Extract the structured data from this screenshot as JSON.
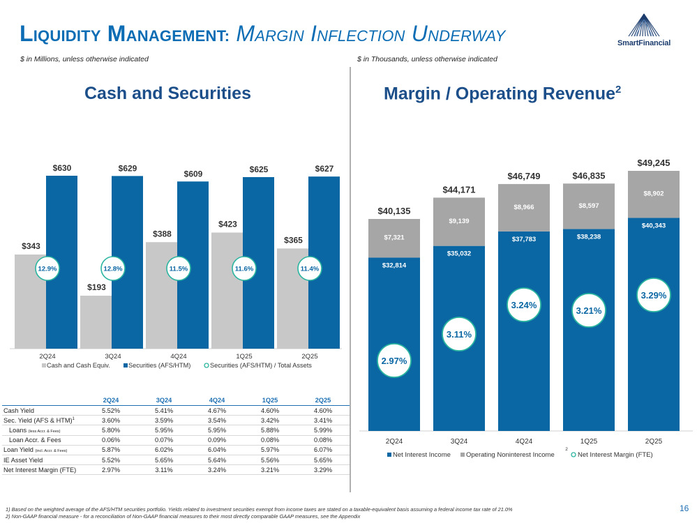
{
  "header": {
    "title_lead_cap": "L",
    "title_lead_rest": "IQUIDITY",
    "title_m_cap": "M",
    "title_m_rest": "ANAGEMENT:",
    "title_sub_cap1": "M",
    "title_sub_rest1": "ARGIN",
    "title_sub_cap2": "I",
    "title_sub_rest2": "NFLECTION",
    "title_sub_cap3": "U",
    "title_sub_rest3": "NDERWAY",
    "logo_text": "SmartFinancial",
    "left_units": "$ in Millions, unless otherwise indicated",
    "right_units": "$ in Thousands, unless otherwise indicated",
    "left_panel_title": "Cash and Securities",
    "right_panel_title": "Margin / Operating Revenue",
    "right_panel_title_sup": "2"
  },
  "chart_data": [
    {
      "type": "bar",
      "categories": [
        "2Q24",
        "3Q24",
        "4Q24",
        "1Q25",
        "2Q25"
      ],
      "series": [
        {
          "name": "Cash and Cash Equiv.",
          "values": [
            343,
            193,
            388,
            423,
            365
          ],
          "labels": [
            "$343",
            "$193",
            "$388",
            "$423",
            "$365"
          ],
          "color": "#c8c8c8"
        },
        {
          "name": "Securities (AFS/HTM)",
          "values": [
            630,
            629,
            609,
            625,
            627
          ],
          "labels": [
            "$630",
            "$629",
            "$609",
            "$625",
            "$627"
          ],
          "color": "#0a67a3"
        },
        {
          "name": "Securities (AFS/HTM) / Total Assets",
          "values": [
            12.9,
            12.8,
            11.5,
            11.6,
            11.4
          ],
          "labels": [
            "12.9%",
            "12.8%",
            "11.5%",
            "11.6%",
            "11.4%"
          ],
          "color": "#2bb5a0",
          "marker": "circle"
        }
      ],
      "legend": "bottom"
    },
    {
      "type": "bar",
      "stacked": true,
      "categories": [
        "2Q24",
        "3Q24",
        "4Q24",
        "1Q25",
        "2Q25"
      ],
      "series": [
        {
          "name": "Net Interest Income",
          "values": [
            32814,
            35032,
            37783,
            38238,
            40343
          ],
          "labels": [
            "$32,814",
            "$35,032",
            "$37,783",
            "$38,238",
            "$40,343"
          ],
          "color": "#0a67a3"
        },
        {
          "name": "Operating Noninterest Income",
          "name_sup": "2",
          "values": [
            7321,
            9139,
            8966,
            8597,
            8902
          ],
          "labels": [
            "$7,321",
            "$9,139",
            "$8,966",
            "$8,597",
            "$8,902"
          ],
          "color": "#a6a6a6"
        },
        {
          "name": "Net Interest Margin (FTE)",
          "values": [
            2.97,
            3.11,
            3.24,
            3.21,
            3.29
          ],
          "labels": [
            "2.97%",
            "3.11%",
            "3.24%",
            "3.21%",
            "3.29%"
          ],
          "color": "#2bb5a0",
          "marker": "circle"
        }
      ],
      "totals": [
        "$40,135",
        "$44,171",
        "$46,749",
        "$46,835",
        "$49,245"
      ],
      "total_values": [
        40135,
        44171,
        46749,
        46835,
        49245
      ],
      "legend": "bottom"
    },
    {
      "type": "table",
      "columns": [
        "2Q24",
        "3Q24",
        "4Q24",
        "1Q25",
        "2Q25"
      ],
      "rows": [
        {
          "label": "Cash Yield",
          "values": [
            "5.52%",
            "5.41%",
            "4.67%",
            "4.60%",
            "4.60%"
          ]
        },
        {
          "label": "Sec. Yield (AFS & HTM)",
          "sup": "1",
          "values": [
            "3.60%",
            "3.59%",
            "3.54%",
            "3.42%",
            "3.41%"
          ]
        },
        {
          "label": "Loans",
          "small": "(less Accr. & Fees)",
          "indent": true,
          "values": [
            "5.80%",
            "5.95%",
            "5.95%",
            "5.88%",
            "5.99%"
          ]
        },
        {
          "label": "Loan Accr. & Fees",
          "indent": true,
          "values": [
            "0.06%",
            "0.07%",
            "0.09%",
            "0.08%",
            "0.08%"
          ]
        },
        {
          "label": "Loan Yield",
          "small": "(incl. Accr. & Fees)",
          "values": [
            "5.87%",
            "6.02%",
            "6.04%",
            "5.97%",
            "6.07%"
          ],
          "separator": true
        },
        {
          "label": "IE Asset Yield",
          "values": [
            "5.52%",
            "5.65%",
            "5.64%",
            "5.56%",
            "5.65%"
          ]
        },
        {
          "label": "Net Interest Margin (FTE)",
          "values": [
            "2.97%",
            "3.11%",
            "3.24%",
            "3.21%",
            "3.29%"
          ]
        }
      ]
    }
  ],
  "footnotes": [
    "1)  Based on the weighted average of the AFS/HTM securities portfolio. Yields related to investment securities exempt from income taxes are stated on a taxable-equivalent basis assuming a federal income tax rate of 21.0%",
    "2)  Non-GAAP financial measure - for a reconciliation of Non-GAAP financial measures to their most directly comparable GAAP measures, see the Appendix"
  ],
  "page_number": "16"
}
